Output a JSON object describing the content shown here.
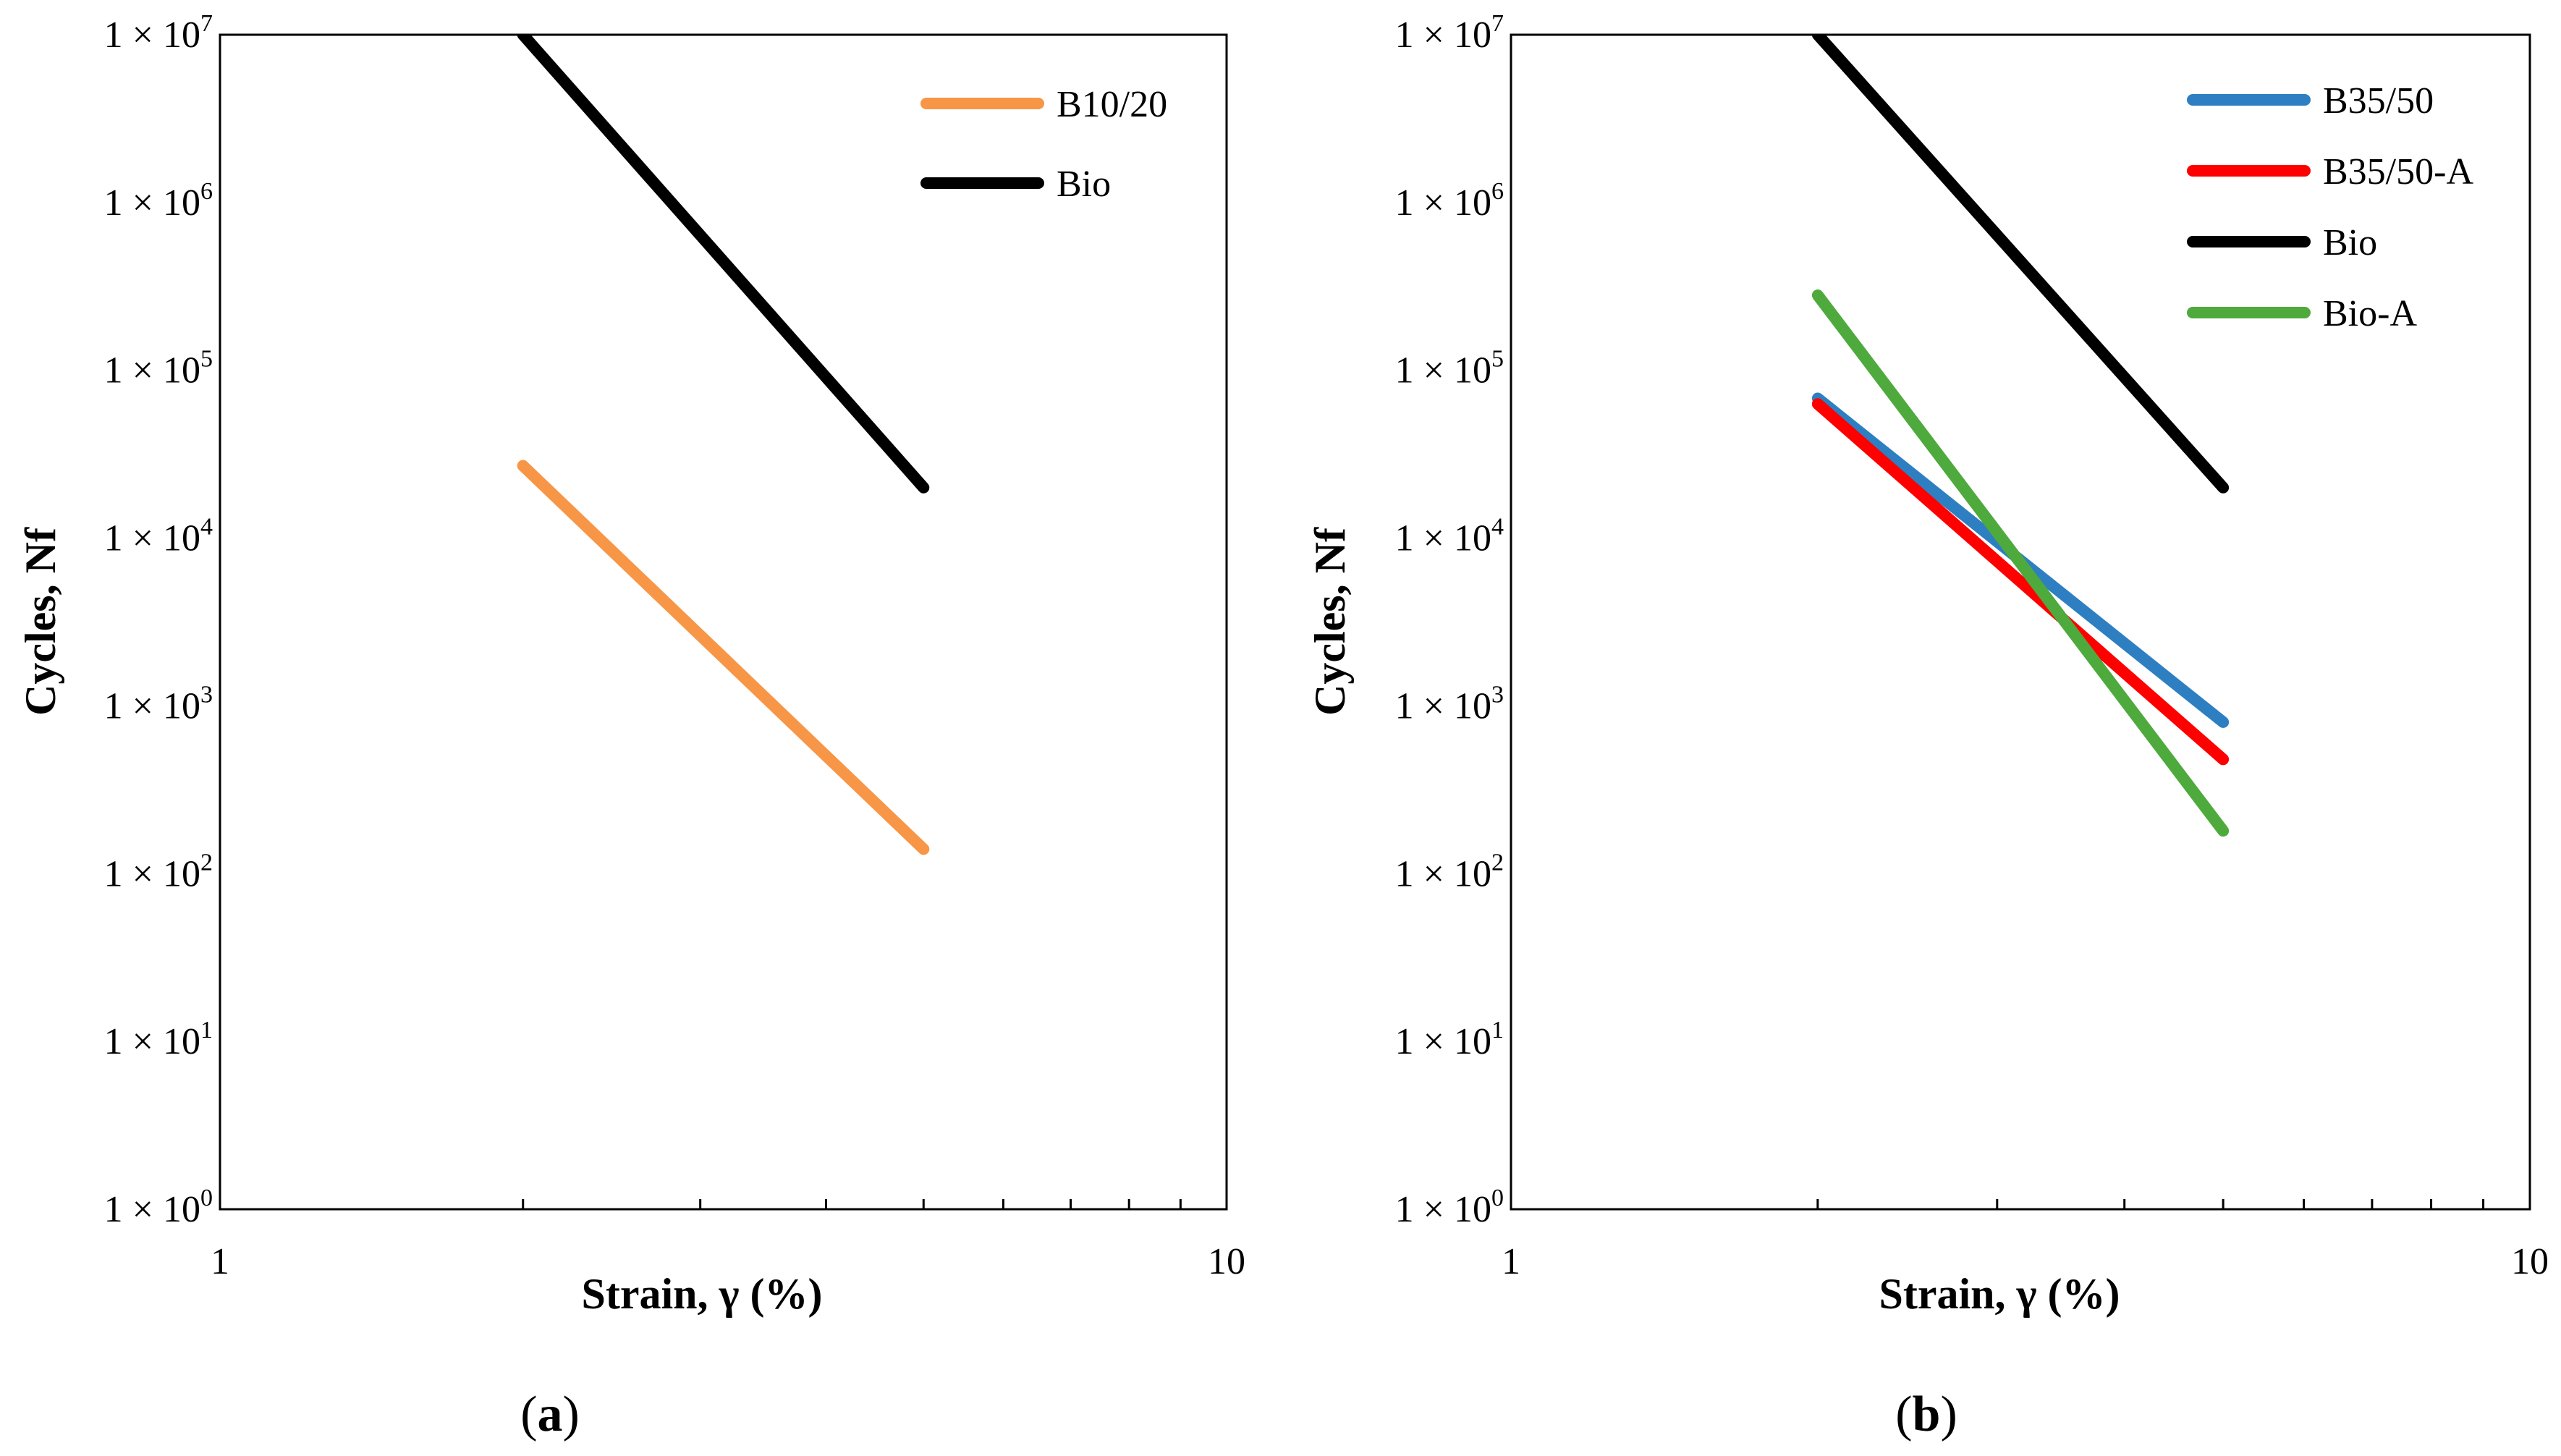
{
  "figure": {
    "panel_labels": [
      {
        "open": "(",
        "letter": "a",
        "close": ")"
      },
      {
        "open": "(",
        "letter": "b",
        "close": ")"
      }
    ]
  },
  "chart_data": [
    {
      "type": "line",
      "panel": "a",
      "xscale": "log",
      "yscale": "log",
      "xlim": [
        1,
        10
      ],
      "ylim": [
        1,
        10000000
      ],
      "xlabel": "Strain, γ (%)",
      "ylabel": "Cycles, Nf",
      "xticks": [
        "1",
        "10"
      ],
      "yticks": [
        {
          "base": "1 × 10",
          "exp": "0"
        },
        {
          "base": "1 × 10",
          "exp": "1"
        },
        {
          "base": "1 × 10",
          "exp": "2"
        },
        {
          "base": "1 × 10",
          "exp": "3"
        },
        {
          "base": "1 × 10",
          "exp": "4"
        },
        {
          "base": "1 × 10",
          "exp": "5"
        },
        {
          "base": "1 × 10",
          "exp": "6"
        },
        {
          "base": "1 × 10",
          "exp": "7"
        }
      ],
      "legend_position": "top-right",
      "series": [
        {
          "name": "B10/20",
          "color": "#F79646",
          "x": [
            2,
            5
          ],
          "y": [
            27000,
            140
          ]
        },
        {
          "name": "Bio",
          "color": "#000000",
          "x": [
            2,
            5
          ],
          "y": [
            10000000,
            20000
          ]
        }
      ]
    },
    {
      "type": "line",
      "panel": "b",
      "xscale": "log",
      "yscale": "log",
      "xlim": [
        1,
        10
      ],
      "ylim": [
        1,
        10000000
      ],
      "xlabel": "Strain, γ (%)",
      "ylabel": "Cycles, Nf",
      "xticks": [
        "1",
        "10"
      ],
      "yticks": [
        {
          "base": "1 × 10",
          "exp": "0"
        },
        {
          "base": "1 × 10",
          "exp": "1"
        },
        {
          "base": "1 × 10",
          "exp": "2"
        },
        {
          "base": "1 × 10",
          "exp": "3"
        },
        {
          "base": "1 × 10",
          "exp": "4"
        },
        {
          "base": "1 × 10",
          "exp": "5"
        },
        {
          "base": "1 × 10",
          "exp": "6"
        },
        {
          "base": "1 × 10",
          "exp": "7"
        }
      ],
      "legend_position": "top-right",
      "series": [
        {
          "name": "B35/50",
          "color": "#2E7FC1",
          "x": [
            2,
            5
          ],
          "y": [
            68000,
            800
          ]
        },
        {
          "name": "B35/50-A",
          "color": "#FF0000",
          "x": [
            2,
            5
          ],
          "y": [
            63000,
            480
          ]
        },
        {
          "name": "Bio",
          "color": "#000000",
          "x": [
            2,
            5
          ],
          "y": [
            10000000,
            20000
          ]
        },
        {
          "name": "Bio-A",
          "color": "#4EAA3C",
          "x": [
            2,
            5
          ],
          "y": [
            280000,
            180
          ]
        }
      ]
    }
  ]
}
